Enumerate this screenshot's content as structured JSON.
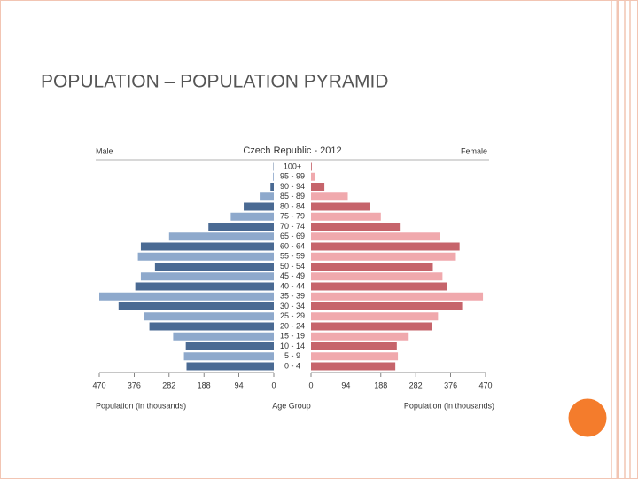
{
  "slide_title": "POPULATION – POPULATION PYRAMID",
  "chart_data": {
    "type": "pyramid",
    "title": "Czech Republic - 2012",
    "categories": [
      "0 - 4",
      "5 - 9",
      "10 - 14",
      "15 - 19",
      "20 - 24",
      "25 - 29",
      "30 - 34",
      "35 - 39",
      "40 - 44",
      "45 - 49",
      "50 - 54",
      "55 - 59",
      "60 - 64",
      "65 - 69",
      "70 - 74",
      "75 - 79",
      "80 - 84",
      "85 - 89",
      "90 - 94",
      "95 - 99",
      "100+"
    ],
    "series": [
      {
        "name": "Male",
        "side": "left",
        "colors": [
          "#4a6a93",
          "#8ea9cc"
        ],
        "values": [
          235,
          242,
          237,
          271,
          335,
          349,
          418,
          470,
          373,
          358,
          320,
          366,
          358,
          282,
          176,
          116,
          81,
          38,
          9,
          2,
          1
        ]
      },
      {
        "name": "Female",
        "side": "right",
        "colors": [
          "#c6646b",
          "#f0a9ad"
        ],
        "values": [
          227,
          234,
          231,
          263,
          325,
          342,
          407,
          463,
          366,
          354,
          328,
          390,
          400,
          347,
          239,
          188,
          159,
          99,
          36,
          10,
          2
        ]
      }
    ],
    "xlim": [
      0,
      470
    ],
    "xticks": [
      0,
      94,
      188,
      282,
      376,
      470
    ],
    "x_label_left": "Population (in thousands)",
    "x_label_center": "Age Group",
    "x_label_right": "Population (in thousands)"
  }
}
